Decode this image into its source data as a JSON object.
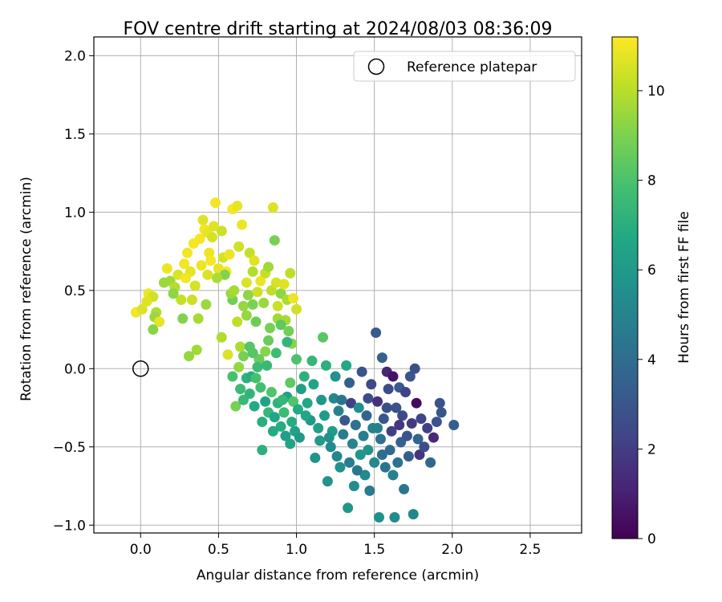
{
  "chart_data": {
    "type": "scatter",
    "title": "FOV centre drift starting at 2024/08/03 08:36:09",
    "xlabel": "Angular distance from reference (arcmin)",
    "ylabel": "Rotation from reference (arcmin)",
    "xlim": [
      -0.3,
      2.83
    ],
    "ylim": [
      -1.05,
      2.12
    ],
    "xticks": [
      0.0,
      0.5,
      1.0,
      1.5,
      2.0,
      2.5
    ],
    "xtick_labels": [
      "0.0",
      "0.5",
      "1.0",
      "1.5",
      "2.0",
      "2.5"
    ],
    "yticks": [
      -1.0,
      -0.5,
      0.0,
      0.5,
      1.0,
      1.5,
      2.0
    ],
    "ytick_labels": [
      "−1.0",
      "−0.5",
      "0.0",
      "0.5",
      "1.0",
      "1.5",
      "2.0"
    ],
    "grid": true,
    "legend": {
      "position": "top-right",
      "entries": [
        {
          "label": "Reference platepar",
          "marker": "open-circle",
          "color": "#000000"
        }
      ]
    },
    "reference_point": {
      "x": 0.0,
      "y": 0.0
    },
    "colorbar": {
      "label": "Hours from first FF file",
      "colormap": "viridis",
      "range": [
        0,
        11.2
      ],
      "ticks": [
        0,
        2,
        4,
        6,
        8,
        10
      ],
      "tick_labels": [
        "0",
        "2",
        "4",
        "6",
        "8",
        "10"
      ]
    },
    "series": [
      {
        "points": [
          [
            -0.03,
            0.36,
            11
          ],
          [
            0.01,
            0.38,
            10.6
          ],
          [
            0.05,
            0.48,
            10.9
          ],
          [
            0.08,
            0.46,
            10.4
          ],
          [
            0.04,
            0.43,
            10.7
          ],
          [
            0.1,
            0.36,
            9.8
          ],
          [
            0.09,
            0.33,
            9.5
          ],
          [
            0.12,
            0.3,
            10.8
          ],
          [
            0.08,
            0.25,
            9.2
          ],
          [
            0.17,
            0.64,
            10.9
          ],
          [
            0.19,
            0.56,
            9.6
          ],
          [
            0.22,
            0.52,
            9.9
          ],
          [
            0.24,
            0.6,
            10.6
          ],
          [
            0.26,
            0.44,
            10.2
          ],
          [
            0.28,
            0.67,
            11
          ],
          [
            0.3,
            0.74,
            11
          ],
          [
            0.32,
            0.62,
            10.8
          ],
          [
            0.31,
            0.08,
            9.4
          ],
          [
            0.36,
            0.12,
            9.6
          ],
          [
            0.33,
            0.44,
            10.3
          ],
          [
            0.38,
            0.83,
            11
          ],
          [
            0.4,
            0.95,
            10.7
          ],
          [
            0.41,
            0.89,
            11
          ],
          [
            0.43,
            0.87,
            10.8
          ],
          [
            0.44,
            0.74,
            10.9
          ],
          [
            0.46,
            0.84,
            10.5
          ],
          [
            0.45,
            0.69,
            11.1
          ],
          [
            0.47,
            0.91,
            10.7
          ],
          [
            0.48,
            1.06,
            11
          ],
          [
            0.52,
            0.88,
            10.3
          ],
          [
            0.5,
            0.64,
            10.8
          ],
          [
            0.53,
            0.71,
            10.5
          ],
          [
            0.55,
            0.62,
            11.1
          ],
          [
            0.57,
            0.73,
            10.9
          ],
          [
            0.54,
            0.6,
            9.1
          ],
          [
            0.52,
            0.2,
            9.9
          ],
          [
            0.56,
            0.09,
            10.6
          ],
          [
            0.59,
            1.02,
            11
          ],
          [
            0.62,
            1.04,
            10.8
          ],
          [
            0.63,
            0.78,
            10.4
          ],
          [
            0.65,
            0.92,
            10.9
          ],
          [
            0.66,
            0.4,
            9.4
          ],
          [
            0.59,
            0.44,
            8.8
          ],
          [
            0.62,
            0.3,
            10.1
          ],
          [
            0.64,
            0.14,
            9.8
          ],
          [
            0.68,
            0.55,
            10.6
          ],
          [
            0.7,
            0.74,
            10.2
          ],
          [
            0.72,
            0.62,
            9.9
          ],
          [
            0.73,
            0.69,
            10.7
          ],
          [
            0.75,
            0.49,
            10.4
          ],
          [
            0.68,
            0.34,
            9.4
          ],
          [
            0.72,
            0.41,
            9.0
          ],
          [
            0.74,
            0.3,
            8.7
          ],
          [
            0.77,
            0.56,
            10.9
          ],
          [
            0.79,
            0.42,
            9.5
          ],
          [
            0.8,
            0.61,
            10.2
          ],
          [
            0.82,
            0.65,
            9.6
          ],
          [
            0.84,
            0.5,
            10.1
          ],
          [
            0.85,
            1.03,
            10.6
          ],
          [
            0.86,
            0.82,
            8.9
          ],
          [
            0.87,
            0.55,
            10.5
          ],
          [
            0.88,
            0.4,
            10.3
          ],
          [
            0.9,
            0.48,
            9.3
          ],
          [
            0.92,
            0.54,
            10.7
          ],
          [
            0.94,
            0.44,
            9.8
          ],
          [
            0.96,
            0.61,
            10.1
          ],
          [
            0.98,
            0.45,
            10.9
          ],
          [
            1.0,
            0.38,
            10.4
          ],
          [
            0.93,
            0.31,
            9.7
          ],
          [
            0.97,
            0.16,
            9.2
          ],
          [
            0.88,
            0.32,
            9.6
          ],
          [
            0.83,
            0.26,
            8.9
          ],
          [
            0.8,
            0.11,
            9.2
          ],
          [
            0.76,
            0.06,
            8.6
          ],
          [
            0.7,
            0.14,
            8.2
          ],
          [
            0.66,
            0.08,
            8.9
          ],
          [
            0.63,
            0.01,
            9.4
          ],
          [
            0.61,
            -0.24,
            8.9
          ],
          [
            0.59,
            -0.05,
            7.9
          ],
          [
            0.64,
            -0.13,
            7.6
          ],
          [
            0.66,
            -0.2,
            7.5
          ],
          [
            0.68,
            -0.06,
            7.1
          ],
          [
            0.7,
            -0.16,
            7.3
          ],
          [
            0.71,
            -0.05,
            6.9
          ],
          [
            0.73,
            -0.24,
            6.8
          ],
          [
            0.75,
            0.01,
            7.6
          ],
          [
            0.77,
            -0.12,
            7.8
          ],
          [
            0.78,
            -0.34,
            7.0
          ],
          [
            0.8,
            -0.21,
            6.5
          ],
          [
            0.82,
            -0.28,
            7.4
          ],
          [
            0.84,
            -0.15,
            8.1
          ],
          [
            0.86,
            -0.31,
            6.6
          ],
          [
            0.88,
            -0.22,
            7.2
          ],
          [
            0.9,
            -0.37,
            6.9
          ],
          [
            0.92,
            -0.28,
            7.6
          ],
          [
            0.94,
            -0.18,
            6.4
          ],
          [
            0.96,
            -0.09,
            8.4
          ],
          [
            0.98,
            -0.21,
            8.1
          ],
          [
            0.99,
            -0.4,
            6.4
          ],
          [
            1.01,
            -0.26,
            6.8
          ],
          [
            0.93,
            -0.43,
            6.2
          ],
          [
            0.97,
            -0.34,
            6.9
          ],
          [
            1.03,
            -0.13,
            6.3
          ],
          [
            1.05,
            -0.05,
            7.1
          ],
          [
            1.07,
            -0.22,
            6.7
          ],
          [
            1.09,
            -0.33,
            6.0
          ],
          [
            1.11,
            -0.1,
            6.5
          ],
          [
            1.12,
            -0.57,
            5.8
          ],
          [
            1.14,
            -0.38,
            6.3
          ],
          [
            1.16,
            -0.2,
            5.9
          ],
          [
            1.18,
            -0.3,
            6.1
          ],
          [
            1.17,
            0.2,
            8.3
          ],
          [
            1.19,
            0.02,
            7.1
          ],
          [
            1.2,
            -0.72,
            5.7
          ],
          [
            1.22,
            -0.5,
            5.3
          ],
          [
            1.23,
            -0.4,
            6.1
          ],
          [
            1.25,
            -0.05,
            5.6
          ],
          [
            1.24,
            -0.19,
            5.1
          ],
          [
            1.27,
            -0.27,
            4.9
          ],
          [
            1.28,
            -0.63,
            5.6
          ],
          [
            1.3,
            -0.42,
            4.6
          ],
          [
            1.32,
            0.02,
            6.7
          ],
          [
            1.31,
            -0.33,
            3.1
          ],
          [
            1.33,
            -0.89,
            5.9
          ],
          [
            1.34,
            -0.6,
            4.7
          ],
          [
            1.35,
            -0.22,
            2.1
          ],
          [
            1.36,
            -0.48,
            5.0
          ],
          [
            1.37,
            -0.75,
            5.4
          ],
          [
            1.38,
            -0.36,
            4.2
          ],
          [
            1.4,
            -0.25,
            5.5
          ],
          [
            1.41,
            -0.55,
            5.8
          ],
          [
            1.42,
            -0.02,
            2.8
          ],
          [
            1.43,
            -0.43,
            4.8
          ],
          [
            1.44,
            -0.68,
            5.2
          ],
          [
            1.45,
            -0.3,
            3.6
          ],
          [
            1.46,
            -0.52,
            5.7
          ],
          [
            1.47,
            -0.78,
            4.6
          ],
          [
            1.48,
            -0.1,
            2.4
          ],
          [
            1.49,
            -0.38,
            4.9
          ],
          [
            1.5,
            -0.6,
            5.2
          ],
          [
            1.51,
            0.23,
            3.2
          ],
          [
            1.52,
            -0.21,
            1.6
          ],
          [
            1.53,
            -0.95,
            5.6
          ],
          [
            1.54,
            -0.45,
            4.1
          ],
          [
            1.55,
            0.07,
            3.5
          ],
          [
            1.56,
            -0.32,
            3.0
          ],
          [
            1.57,
            -0.63,
            4.3
          ],
          [
            1.58,
            -0.02,
            1.2
          ],
          [
            1.59,
            -0.13,
            2.6
          ],
          [
            1.6,
            -0.52,
            3.9
          ],
          [
            1.61,
            -0.4,
            2.1
          ],
          [
            1.62,
            -0.05,
            0.6
          ],
          [
            1.63,
            -0.95,
            5.3
          ],
          [
            1.64,
            -0.25,
            2.8
          ],
          [
            1.65,
            -0.6,
            4.2
          ],
          [
            1.66,
            -0.12,
            3.2
          ],
          [
            1.67,
            -0.47,
            3.5
          ],
          [
            1.68,
            -0.3,
            2.5
          ],
          [
            1.69,
            -0.77,
            4.4
          ],
          [
            1.7,
            -0.15,
            2.2
          ],
          [
            1.71,
            -0.43,
            2.9
          ],
          [
            1.72,
            -0.56,
            3.3
          ],
          [
            1.73,
            -0.05,
            3.0
          ],
          [
            1.74,
            -0.35,
            1.9
          ],
          [
            1.75,
            -0.93,
            5.1
          ],
          [
            1.76,
            0.0,
            2.7
          ],
          [
            1.77,
            -0.22,
            0.3
          ],
          [
            1.78,
            -0.45,
            3.6
          ],
          [
            1.79,
            -0.55,
            1.7
          ],
          [
            1.8,
            -0.32,
            2.3
          ],
          [
            1.82,
            -0.5,
            2.6
          ],
          [
            1.84,
            -0.38,
            2.1
          ],
          [
            1.86,
            -0.6,
            3.7
          ],
          [
            1.88,
            -0.44,
            1.3
          ],
          [
            1.9,
            -0.34,
            2.9
          ],
          [
            1.92,
            -0.22,
            2.8
          ],
          [
            1.93,
            -0.28,
            3.0
          ],
          [
            2.01,
            -0.36,
            3.3
          ],
          [
            1.52,
            -0.38,
            4.9
          ],
          [
            1.39,
            -0.65,
            4.5
          ],
          [
            1.26,
            -0.56,
            5.1
          ],
          [
            1.21,
            -0.44,
            5.6
          ],
          [
            1.15,
            -0.46,
            6.1
          ],
          [
            1.29,
            -0.2,
            4.4
          ],
          [
            1.34,
            -0.09,
            3.4
          ],
          [
            1.46,
            -0.19,
            2.6
          ],
          [
            1.55,
            -0.55,
            4.0
          ],
          [
            1.62,
            -0.68,
            4.9
          ],
          [
            1.66,
            -0.36,
            1.8
          ],
          [
            1.58,
            -0.25,
            2.7
          ],
          [
            1.06,
            -0.3,
            6.6
          ],
          [
            1.02,
            -0.44,
            6.0
          ],
          [
            0.96,
            -0.48,
            6.5
          ],
          [
            0.91,
            -0.2,
            7.4
          ],
          [
            0.85,
            -0.4,
            6.8
          ],
          [
            0.81,
            0.02,
            7.5
          ],
          [
            0.87,
            0.1,
            7.7
          ],
          [
            0.94,
            0.17,
            7.3
          ],
          [
            1.0,
            0.06,
            8.0
          ],
          [
            1.1,
            0.05,
            7.4
          ],
          [
            0.78,
            -0.52,
            7.1
          ],
          [
            0.74,
            -0.06,
            7.9
          ],
          [
            0.72,
            0.1,
            8.2
          ],
          [
            0.82,
            0.18,
            8.6
          ],
          [
            0.9,
            0.28,
            8.4
          ],
          [
            0.95,
            0.24,
            8.8
          ],
          [
            0.69,
            0.47,
            9.3
          ],
          [
            0.58,
            0.48,
            9.5
          ],
          [
            0.49,
            0.58,
            9.8
          ],
          [
            0.42,
            0.41,
            9.5
          ],
          [
            0.37,
            0.32,
            9.7
          ],
          [
            0.27,
            0.32,
            9.1
          ],
          [
            0.21,
            0.48,
            9.3
          ],
          [
            0.15,
            0.55,
            9.5
          ],
          [
            0.43,
            0.6,
            10.6
          ],
          [
            0.39,
            0.66,
            10.9
          ],
          [
            0.35,
            0.53,
            10.5
          ],
          [
            0.29,
            0.58,
            11
          ],
          [
            0.34,
            0.8,
            11.1
          ],
          [
            0.6,
            0.5,
            9.7
          ]
        ]
      }
    ]
  }
}
